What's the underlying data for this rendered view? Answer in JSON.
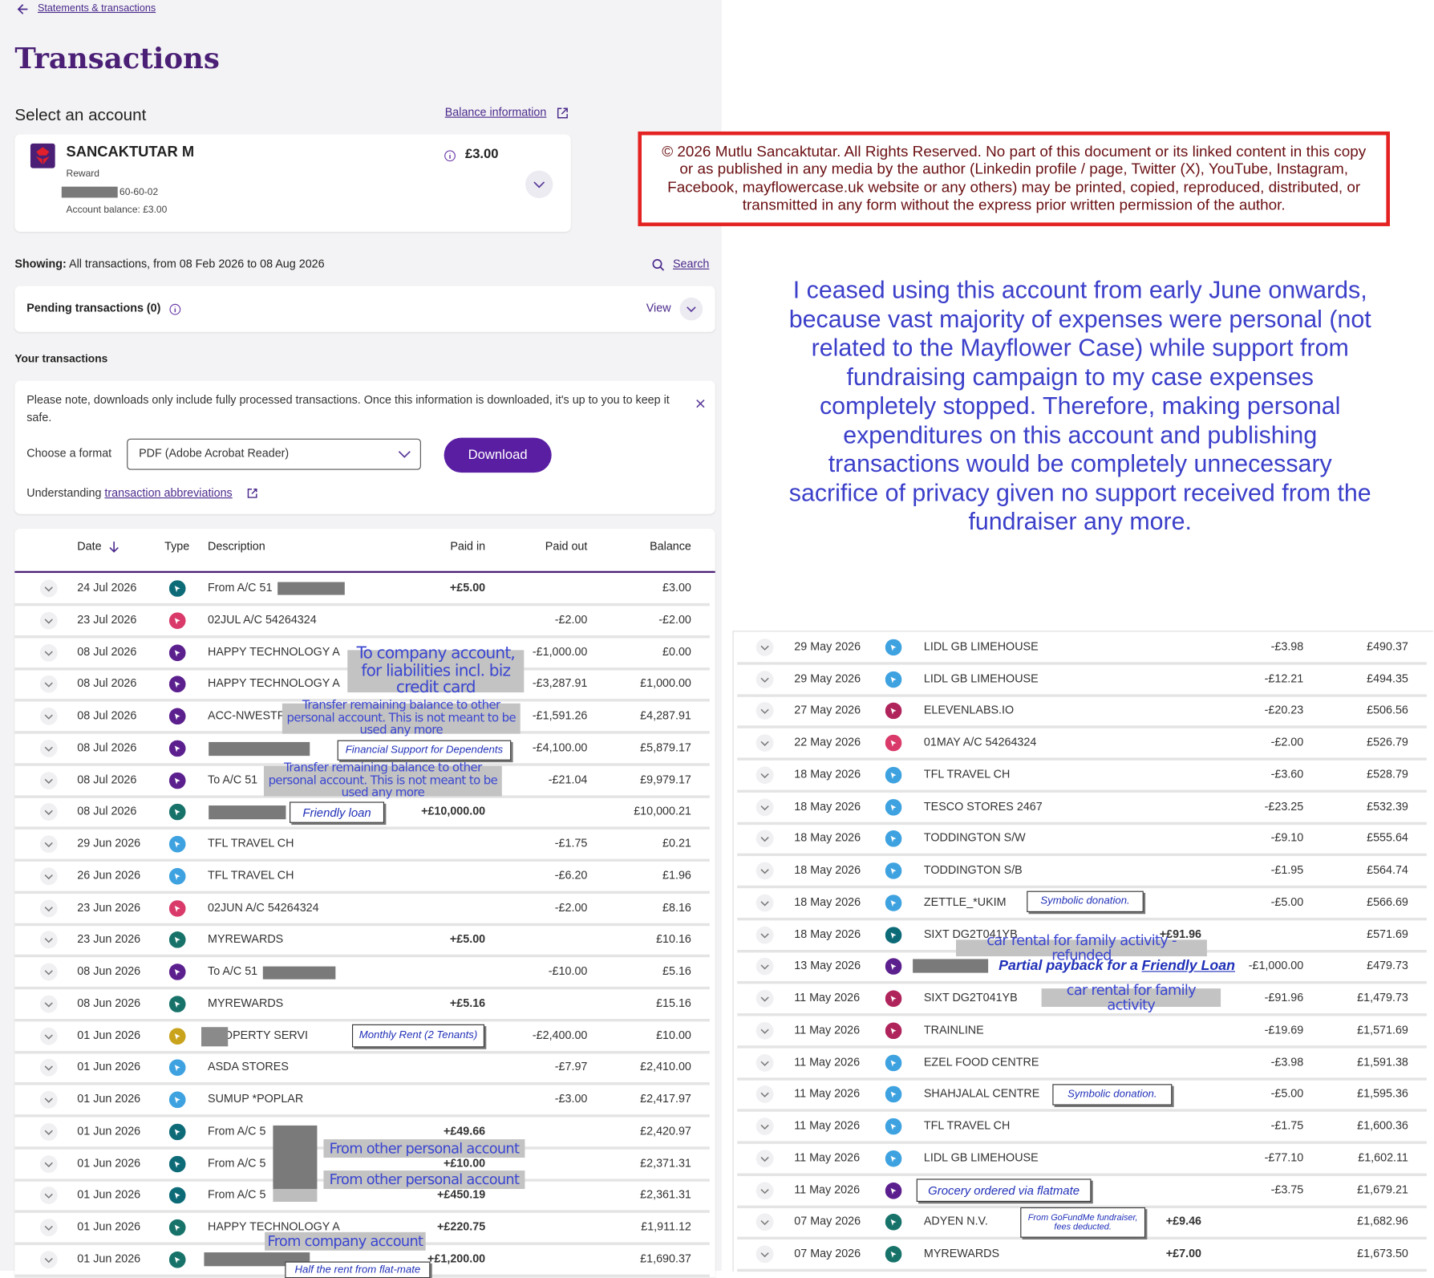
{
  "nav": {
    "back_link": "Statements & transactions"
  },
  "title": "Transactions",
  "select_account": {
    "label": "Select an account",
    "balance_link": "Balance information"
  },
  "account": {
    "name": "SANCAKTUTAR M",
    "type": "Reward",
    "sort_code": "60-60-02",
    "balance": "£3.00",
    "account_balance": "Account balance: £3.00"
  },
  "showing": {
    "label": "Showing:",
    "text": "All transactions, from 08 Feb 2026 to 08 Aug 2026",
    "search": "Search"
  },
  "pending": {
    "label": "Pending transactions (0)",
    "view": "View"
  },
  "your_transactions": "Your transactions",
  "download": {
    "note": "Please note, downloads only include fully processed transactions. Once this information is downloaded, it's up to you to keep it safe.",
    "format_label": "Choose a format",
    "format_value": "PDF (Adobe Acrobat Reader)",
    "button": "Download",
    "understanding": "Understanding",
    "abbrev_link": "transaction abbreviations"
  },
  "table": {
    "headers": [
      "Date",
      "Type",
      "Description",
      "Paid in",
      "Paid out",
      "Balance"
    ],
    "rows": [
      {
        "date": "24 Jul 2026",
        "icon": "#0d6b78",
        "description": "From A/C 51",
        "paid_in": "+£5.00",
        "paid_out": null,
        "balance": "£3.00"
      },
      {
        "date": "23 Jul 2026",
        "icon": "#d93a6a",
        "description": "02JUL A/C 54264324",
        "paid_in": null,
        "paid_out": "-£2.00",
        "balance": "-£2.00"
      },
      {
        "date": "08 Jul 2026",
        "icon": "#5b1f8e",
        "description": "HAPPY TECHNOLOGY A",
        "paid_in": null,
        "paid_out": "-£1,000.00",
        "balance": "£0.00"
      },
      {
        "date": "08 Jul 2026",
        "icon": "#5b1f8e",
        "description": "HAPPY TECHNOLOGY A",
        "paid_in": null,
        "paid_out": "-£3,287.91",
        "balance": "£1,000.00"
      },
      {
        "date": "08 Jul 2026",
        "icon": "#5b1f8e",
        "description": "ACC-NWESTF",
        "paid_in": null,
        "paid_out": "-£1,591.26",
        "balance": "£4,287.91"
      },
      {
        "date": "08 Jul 2026",
        "icon": "#5b1f8e",
        "description": null,
        "paid_in": null,
        "paid_out": "-£4,100.00",
        "balance": "£5,879.17"
      },
      {
        "date": "08 Jul 2026",
        "icon": "#5b1f8e",
        "description": "To A/C 51",
        "paid_in": null,
        "paid_out": "-£21.04",
        "balance": "£9,979.17"
      },
      {
        "date": "08 Jul 2026",
        "icon": "#17736a",
        "description": null,
        "paid_in": "+£10,000.00",
        "paid_out": null,
        "balance": "£10,000.21"
      },
      {
        "date": "29 Jun 2026",
        "icon": "#3ea2e0",
        "description": "TFL TRAVEL CH",
        "paid_in": null,
        "paid_out": "-£1.75",
        "balance": "£0.21"
      },
      {
        "date": "26 Jun 2026",
        "icon": "#3ea2e0",
        "description": "TFL TRAVEL CH",
        "paid_in": null,
        "paid_out": "-£6.20",
        "balance": "£1.96"
      },
      {
        "date": "23 Jun 2026",
        "icon": "#d93a6a",
        "description": "02JUN A/C 54264324",
        "paid_in": null,
        "paid_out": "-£2.00",
        "balance": "£8.16"
      },
      {
        "date": "23 Jun 2026",
        "icon": "#17736a",
        "description": "MYREWARDS",
        "paid_in": "+£5.00",
        "paid_out": null,
        "balance": "£10.16"
      },
      {
        "date": "08 Jun 2026",
        "icon": "#5b1f8e",
        "description": "To A/C 51",
        "paid_in": null,
        "paid_out": "-£10.00",
        "balance": "£5.16"
      },
      {
        "date": "08 Jun 2026",
        "icon": "#17736a",
        "description": "MYREWARDS",
        "paid_in": "+£5.16",
        "paid_out": null,
        "balance": "£15.16"
      },
      {
        "date": "01 Jun 2026",
        "icon": "#c9a31c",
        "description": "PROPERTY SERVI",
        "paid_in": null,
        "paid_out": "-£2,400.00",
        "balance": "£10.00"
      },
      {
        "date": "01 Jun 2026",
        "icon": "#3ea2e0",
        "description": "ASDA STORES",
        "paid_in": null,
        "paid_out": "-£7.97",
        "balance": "£2,410.00"
      },
      {
        "date": "01 Jun 2026",
        "icon": "#3ea2e0",
        "description": "SUMUP *POPLAR",
        "paid_in": null,
        "paid_out": "-£3.00",
        "balance": "£2,417.97"
      },
      {
        "date": "01 Jun 2026",
        "icon": "#0d6b78",
        "description": "From A/C 5",
        "paid_in": "+£49.66",
        "paid_out": null,
        "balance": "£2,420.97"
      },
      {
        "date": "01 Jun 2026",
        "icon": "#0d6b78",
        "description": "From A/C 5",
        "paid_in": "+£10.00",
        "paid_out": null,
        "balance": "£2,371.31"
      },
      {
        "date": "01 Jun 2026",
        "icon": "#0d6b78",
        "description": "From A/C 5",
        "paid_in": "+£450.19",
        "paid_out": null,
        "balance": "£2,361.31"
      },
      {
        "date": "01 Jun 2026",
        "icon": "#17736a",
        "description": "HAPPY TECHNOLOGY A",
        "paid_in": "+£220.75",
        "paid_out": null,
        "balance": "£1,911.12"
      },
      {
        "date": "01 Jun 2026",
        "icon": "#17736a",
        "description": null,
        "paid_in": "+£1,200.00",
        "paid_out": null,
        "balance": "£1,690.37"
      }
    ],
    "rows_continued": [
      {
        "date": "29 May 2026",
        "icon": "#3ea2e0",
        "description": "LIDL GB LIMEHOUSE",
        "paid_in": null,
        "paid_out": "-£3.98",
        "balance": "£490.37"
      },
      {
        "date": "29 May 2026",
        "icon": "#3ea2e0",
        "description": "LIDL GB LIMEHOUSE",
        "paid_in": null,
        "paid_out": "-£12.21",
        "balance": "£494.35"
      },
      {
        "date": "27 May 2026",
        "icon": "#b0245c",
        "description": "ELEVENLABS.IO",
        "paid_in": null,
        "paid_out": "-£20.23",
        "balance": "£506.56"
      },
      {
        "date": "22 May 2026",
        "icon": "#d93a6a",
        "description": "01MAY A/C 54264324",
        "paid_in": null,
        "paid_out": "-£2.00",
        "balance": "£526.79"
      },
      {
        "date": "18 May 2026",
        "icon": "#3ea2e0",
        "description": "TFL TRAVEL CH",
        "paid_in": null,
        "paid_out": "-£3.60",
        "balance": "£528.79"
      },
      {
        "date": "18 May 2026",
        "icon": "#3ea2e0",
        "description": "TESCO STORES 2467",
        "paid_in": null,
        "paid_out": "-£23.25",
        "balance": "£532.39"
      },
      {
        "date": "18 May 2026",
        "icon": "#3ea2e0",
        "description": "TODDINGTON S/W",
        "paid_in": null,
        "paid_out": "-£9.10",
        "balance": "£555.64"
      },
      {
        "date": "18 May 2026",
        "icon": "#3ea2e0",
        "description": "TODDINGTON S/B",
        "paid_in": null,
        "paid_out": "-£1.95",
        "balance": "£564.74"
      },
      {
        "date": "18 May 2026",
        "icon": "#3ea2e0",
        "description": "ZETTLE_*UKIM",
        "paid_in": null,
        "paid_out": "-£5.00",
        "balance": "£566.69"
      },
      {
        "date": "18 May 2026",
        "icon": "#0d6b78",
        "description": "SIXT DG2T041YB",
        "paid_in": "+£91.96",
        "paid_out": null,
        "balance": "£571.69"
      },
      {
        "date": "13 May 2026",
        "icon": "#5b1f8e",
        "description": null,
        "paid_in": null,
        "paid_out": "-£1,000.00",
        "balance": "£479.73"
      },
      {
        "date": "11 May 2026",
        "icon": "#b0245c",
        "description": "SIXT DG2T041YB",
        "paid_in": null,
        "paid_out": "-£91.96",
        "balance": "£1,479.73"
      },
      {
        "date": "11 May 2026",
        "icon": "#b0245c",
        "description": "TRAINLINE",
        "paid_in": null,
        "paid_out": "-£19.69",
        "balance": "£1,571.69"
      },
      {
        "date": "11 May 2026",
        "icon": "#3ea2e0",
        "description": "EZEL FOOD CENTRE",
        "paid_in": null,
        "paid_out": "-£3.98",
        "balance": "£1,591.38"
      },
      {
        "date": "11 May 2026",
        "icon": "#3ea2e0",
        "description": "SHAHJALAL CENTRE",
        "paid_in": null,
        "paid_out": "-£5.00",
        "balance": "£1,595.36"
      },
      {
        "date": "11 May 2026",
        "icon": "#3ea2e0",
        "description": "TFL TRAVEL CH",
        "paid_in": null,
        "paid_out": "-£1.75",
        "balance": "£1,600.36"
      },
      {
        "date": "11 May 2026",
        "icon": "#3ea2e0",
        "description": "LIDL GB LIMEHOUSE",
        "paid_in": null,
        "paid_out": "-£77.10",
        "balance": "£1,602.11"
      },
      {
        "date": "11 May 2026",
        "icon": "#5b1f8e",
        "description": null,
        "paid_in": null,
        "paid_out": "-£3.75",
        "balance": "£1,679.21"
      },
      {
        "date": "07 May 2026",
        "icon": "#17736a",
        "description": "ADYEN N.V.",
        "paid_in": "+£9.46",
        "paid_out": null,
        "balance": "£1,682.96"
      },
      {
        "date": "07 May 2026",
        "icon": "#17736a",
        "description": "MYREWARDS",
        "paid_in": "+£7.00",
        "paid_out": null,
        "balance": "£1,673.50"
      }
    ]
  },
  "copyright": "© 2026 Mutlu Sancaktutar. All Rights Reserved. No part of this document or its linked content in this copy or as published in any media by the author (Linkedin profile / page, Twitter (X), YouTube, Instagram, Facebook, mayflowercase.uk website or any others) may be printed, copied, reproduced, distributed, or transmitted in any form without the express prior written permission of the author.",
  "statement": "I ceased using this account from early June onwards, because vast majority of expenses were personal (not related to the Mayflower Case) while support from fundraising campaign to my case expenses completely stopped. Therefore, making personal expenditures on this account and publishing transactions would be completely unnecessary sacrifice of privacy given no support received from the fundraiser any more.",
  "annotations": [
    {
      "text": "To company account, for liabilities incl. biz credit card",
      "style": "highlight"
    },
    {
      "text": "Transfer remaining balance to other personal account. This is not meant to be used any more",
      "style": "highlight"
    },
    {
      "text": "Financial Support for Dependents",
      "style": "boxed"
    },
    {
      "text": "Transfer remaining balance to other personal account. This is not meant to be used any more",
      "style": "highlight"
    },
    {
      "text": "Friendly loan",
      "style": "boxed"
    },
    {
      "text": "Monthly Rent (2 Tenants)",
      "style": "boxed"
    },
    {
      "text": "From other personal account",
      "style": "highlight"
    },
    {
      "text": "From other personal account",
      "style": "highlight"
    },
    {
      "text": "From company account",
      "style": "highlight"
    },
    {
      "text": "Half the rent from flat-mate",
      "style": "boxed"
    },
    {
      "text": "Symbolic donation.",
      "style": "boxed"
    },
    {
      "text": "car rental for family activity - refunded",
      "style": "highlight"
    },
    {
      "text": "Partial payback for a",
      "link": "Friendly Loan",
      "style": "plain"
    },
    {
      "text": "car rental for family activity",
      "style": "highlight"
    },
    {
      "text": "Symbolic donation.",
      "style": "boxed"
    },
    {
      "text": "Grocery ordered via flatmate",
      "style": "boxed"
    },
    {
      "text": "From GoFundMe fundraiser, fees deducted.",
      "style": "boxed"
    }
  ]
}
